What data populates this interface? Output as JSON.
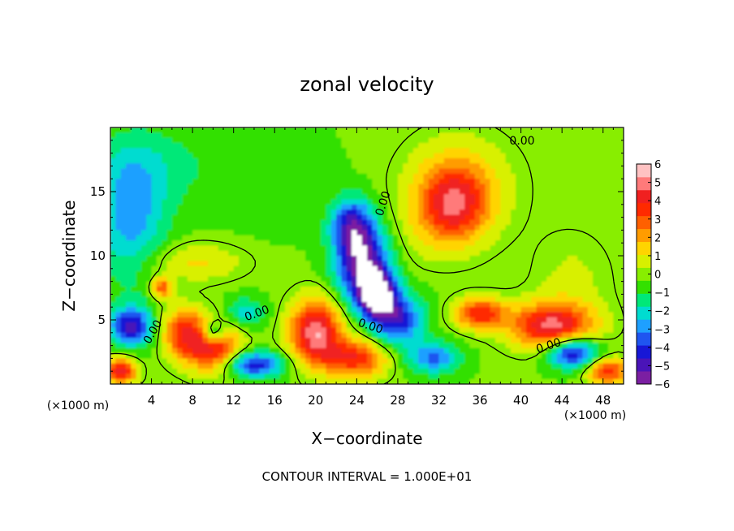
{
  "chart_data": {
    "type": "heatmap",
    "title": "zonal velocity",
    "xlabel": "X−coordinate",
    "ylabel": "Z−coordinate",
    "x_units_left": "(×1000 m)",
    "x_units_right": "(×1000 m)",
    "xlim": [
      0,
      50
    ],
    "ylim": [
      0,
      20
    ],
    "x_ticks": [
      4,
      8,
      12,
      16,
      20,
      24,
      28,
      32,
      36,
      40,
      44,
      48
    ],
    "x_tick_labels": [
      "4",
      "8",
      "12",
      "16",
      "20",
      "24",
      "28",
      "32",
      "36",
      "40",
      "44",
      "48"
    ],
    "y_ticks": [
      5,
      10,
      15
    ],
    "y_tick_labels": [
      "5",
      "10",
      "15"
    ],
    "colorbar": {
      "min": -6,
      "max": 6,
      "tick_labels": [
        "6",
        "5",
        "4",
        "3",
        "2",
        "1",
        "0",
        "−1",
        "−2",
        "−3",
        "−4",
        "−5",
        "−6"
      ],
      "colors": [
        "#7b1fa2",
        "#4a14b8",
        "#1717d6",
        "#1f55f0",
        "#1ea0ff",
        "#00dcd0",
        "#00e878",
        "#33e000",
        "#88ee00",
        "#d8f000",
        "#ffd400",
        "#ff9c00",
        "#ff6000",
        "#ff2a00",
        "#f02020",
        "#ff7a7a",
        "#ffc2c2"
      ]
    },
    "contour_labels": [
      "0.00",
      "0.00",
      "0.00",
      "0.00",
      "0.00",
      "0.00"
    ],
    "footnote": "CONTOUR INTERVAL = 1.000E+01",
    "features": [
      {
        "x": 33.5,
        "z": 14.0,
        "value": 4.0,
        "sx": 3.2,
        "sz": 3.0
      },
      {
        "x": 34.0,
        "z": 15.5,
        "value": 1.5,
        "sx": 5.5,
        "sz": 4.0
      },
      {
        "x": 2.0,
        "z": 13.0,
        "value": -2.5,
        "sx": 3.5,
        "sz": 5.0
      },
      {
        "x": 4.0,
        "z": 17.0,
        "value": -1.0,
        "sx": 6.0,
        "sz": 3.0
      },
      {
        "x": 24.5,
        "z": 9.5,
        "value": -5.5,
        "sx": 2.5,
        "sz": 3.0
      },
      {
        "x": 23.5,
        "z": 12.5,
        "value": -3.5,
        "sx": 2.0,
        "sz": 2.0
      },
      {
        "x": 26.0,
        "z": 7.0,
        "value": -6.0,
        "sx": 1.8,
        "sz": 1.8
      },
      {
        "x": 28.0,
        "z": 5.0,
        "value": -4.0,
        "sx": 2.5,
        "sz": 2.0
      },
      {
        "x": 20.0,
        "z": 4.0,
        "value": 5.5,
        "sx": 2.5,
        "sz": 2.5
      },
      {
        "x": 10.0,
        "z": 3.0,
        "value": 5.0,
        "sx": 2.5,
        "sz": 2.0
      },
      {
        "x": 7.0,
        "z": 4.0,
        "value": 3.5,
        "sx": 2.0,
        "sz": 2.0
      },
      {
        "x": 24.0,
        "z": 2.0,
        "value": 4.0,
        "sx": 3.0,
        "sz": 1.5
      },
      {
        "x": 43.0,
        "z": 4.5,
        "value": 5.0,
        "sx": 4.0,
        "sz": 1.8
      },
      {
        "x": 36.0,
        "z": 5.5,
        "value": 4.0,
        "sx": 2.5,
        "sz": 1.2
      },
      {
        "x": 14.0,
        "z": 1.5,
        "value": -4.0,
        "sx": 3.0,
        "sz": 1.0
      },
      {
        "x": 2.0,
        "z": 4.5,
        "value": -4.5,
        "sx": 2.0,
        "sz": 1.5
      },
      {
        "x": 10.0,
        "z": 4.0,
        "value": -4.0,
        "sx": 1.2,
        "sz": 1.0
      },
      {
        "x": 45.0,
        "z": 2.5,
        "value": -5.0,
        "sx": 2.5,
        "sz": 1.2
      },
      {
        "x": 1.0,
        "z": 1.0,
        "value": 5.0,
        "sx": 1.5,
        "sz": 1.0
      },
      {
        "x": 48.5,
        "z": 1.0,
        "value": 4.0,
        "sx": 2.0,
        "sz": 1.0
      },
      {
        "x": 31.5,
        "z": 2.0,
        "value": -3.0,
        "sx": 2.5,
        "sz": 1.2
      },
      {
        "x": 8.0,
        "z": 9.5,
        "value": 1.5,
        "sx": 5.0,
        "sz": 1.5
      },
      {
        "x": 5.0,
        "z": 7.5,
        "value": 3.5,
        "sx": 1.0,
        "sz": 0.8
      },
      {
        "x": 13.0,
        "z": 5.5,
        "value": -2.0,
        "sx": 2.0,
        "sz": 1.2
      },
      {
        "x": 30.0,
        "z": 12.0,
        "value": 0.5,
        "sx": 3.0,
        "sz": 3.0
      },
      {
        "x": 45.0,
        "z": 8.0,
        "value": 0.8,
        "sx": 4.0,
        "sz": 4.0
      },
      {
        "x": 20.0,
        "z": 18.5,
        "value": 0.0,
        "sx": 8.0,
        "sz": 2.0
      },
      {
        "x": 15.0,
        "z": 16.0,
        "value": -0.5,
        "sx": 6.0,
        "sz": 4.0
      }
    ],
    "background_value": -0.3
  }
}
